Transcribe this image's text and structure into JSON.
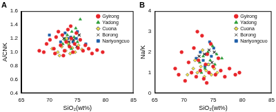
{
  "chart_data": [
    {
      "type": "scatter",
      "title": "A",
      "x_label": "SiO₂(wt%)",
      "y_label": "A/CNK",
      "xlim": [
        65,
        85
      ],
      "xticks": [
        65,
        70,
        75,
        80,
        85
      ],
      "ylim": [
        0.4,
        1.6
      ],
      "yticks": [
        0.4,
        0.6,
        0.8,
        {
          "value": 1,
          "label": "1.0"
        },
        1.2,
        1.4,
        1.6
      ],
      "grid": false,
      "legend": "upper right",
      "series": [
        {
          "name": "Gyirong",
          "color": "#e8252a",
          "marker": "circle",
          "x": [
            68.2,
            69.5,
            70.1,
            70.8,
            71.2,
            71.6,
            72.0,
            72.3,
            72.7,
            73.0,
            73.3,
            73.6,
            73.9,
            74.2,
            74.5,
            74.8,
            75.1,
            75.5,
            76.0,
            76.4,
            77.0,
            77.6,
            78.5,
            79.5,
            72.5,
            71.0,
            73.8,
            69.0
          ],
          "values": [
            1.02,
            1.12,
            1.18,
            1.05,
            1.22,
            1.3,
            1.1,
            1.25,
            1.02,
            1.15,
            1.33,
            1.08,
            1.2,
            1.0,
            1.12,
            1.28,
            1.06,
            1.18,
            1.02,
            1.1,
            1.05,
            0.98,
            1.03,
            1.0,
            0.95,
            0.98,
            1.38,
            1.0
          ]
        },
        {
          "name": "Yadong",
          "color": "#2e9e3a",
          "marker": "triangle",
          "x": [
            72.8,
            73.2,
            73.5,
            74.0,
            74.4,
            74.7,
            75.0,
            75.5,
            73.9,
            72.4
          ],
          "values": [
            1.18,
            1.25,
            1.1,
            1.3,
            1.22,
            1.35,
            1.15,
            1.48,
            1.05,
            1.12
          ]
        },
        {
          "name": "Cuona",
          "color": "#f3e24a",
          "marker": "diamond",
          "x": [
            70.5,
            71.5,
            72.2,
            72.9,
            73.4,
            73.7,
            74.1,
            74.6,
            75.2,
            75.8,
            71.8,
            73.1
          ],
          "values": [
            1.05,
            1.0,
            1.08,
            1.02,
            1.12,
            0.98,
            1.06,
            1.0,
            1.1,
            1.04,
            0.95,
            1.2
          ]
        },
        {
          "name": "Borong",
          "color": "#333333",
          "marker": "x",
          "x": [
            73.5,
            74.3,
            75.3,
            74.9,
            72.6
          ],
          "values": [
            1.15,
            1.18,
            1.25,
            1.08,
            1.2
          ]
        },
        {
          "name": "Nariyongcuo",
          "color": "#1f5fa8",
          "marker": "square",
          "x": [
            72.0,
            72.8,
            73.3,
            73.8,
            74.2,
            74.8,
            75.0,
            70.0,
            76.5
          ],
          "values": [
            1.15,
            1.28,
            1.2,
            1.22,
            1.15,
            1.2,
            1.3,
            1.25,
            1.12
          ]
        }
      ]
    },
    {
      "type": "scatter",
      "title": "B",
      "x_label": "SiO₂(wt%)",
      "y_label": "Na/K",
      "xlim": [
        65,
        85
      ],
      "xticks": [
        65,
        70,
        75,
        80,
        85
      ],
      "ylim": [
        0,
        4
      ],
      "yticks": [
        0,
        1,
        2,
        3,
        4
      ],
      "grid": false,
      "legend": "upper right",
      "series": [
        {
          "name": "Gyirong",
          "color": "#e8252a",
          "marker": "circle",
          "x": [
            68.5,
            69.6,
            70.2,
            70.8,
            71.3,
            71.7,
            72.1,
            72.5,
            72.8,
            73.1,
            73.4,
            73.7,
            74.0,
            74.3,
            74.6,
            75.0,
            75.4,
            75.9,
            76.3,
            77.0,
            77.8,
            78.8,
            79.5,
            72.3,
            69.1,
            73.9
          ],
          "values": [
            1.2,
            2.0,
            0.6,
            1.5,
            1.0,
            2.2,
            0.8,
            1.6,
            1.1,
            2.8,
            0.7,
            1.4,
            1.9,
            1.0,
            2.4,
            1.3,
            0.9,
            1.7,
            1.1,
            0.8,
            1.2,
            0.9,
            1.0,
            3.0,
            0.9,
            0.5
          ]
        },
        {
          "name": "Yadong",
          "color": "#2e9e3a",
          "marker": "triangle",
          "x": [
            72.7,
            73.3,
            73.6,
            74.1,
            74.5,
            74.9,
            75.3,
            75.6,
            73.0,
            76.5
          ],
          "values": [
            1.5,
            1.8,
            1.2,
            2.0,
            1.6,
            2.3,
            1.4,
            1.9,
            1.0,
            1.7
          ]
        },
        {
          "name": "Cuona",
          "color": "#f3e24a",
          "marker": "diamond",
          "x": [
            70.6,
            71.6,
            72.3,
            72.9,
            73.5,
            73.8,
            74.2,
            74.7,
            75.2,
            75.7,
            71.9,
            73.2
          ],
          "values": [
            0.9,
            1.2,
            1.0,
            1.3,
            0.8,
            1.1,
            1.4,
            0.9,
            1.2,
            1.0,
            1.6,
            2.1
          ]
        },
        {
          "name": "Borong",
          "color": "#333333",
          "marker": "x",
          "x": [
            73.5,
            74.3,
            75.2,
            74.8,
            72.6
          ],
          "values": [
            1.9,
            2.1,
            2.0,
            1.5,
            1.8
          ]
        },
        {
          "name": "Nariyongcuo",
          "color": "#1f5fa8",
          "marker": "square",
          "x": [
            72.1,
            72.8,
            73.3,
            73.8,
            74.2,
            74.7,
            75.1,
            73.6,
            74.4
          ],
          "values": [
            1.7,
            2.0,
            1.6,
            1.9,
            1.4,
            1.8,
            2.2,
            1.3,
            2.5
          ]
        }
      ]
    }
  ]
}
